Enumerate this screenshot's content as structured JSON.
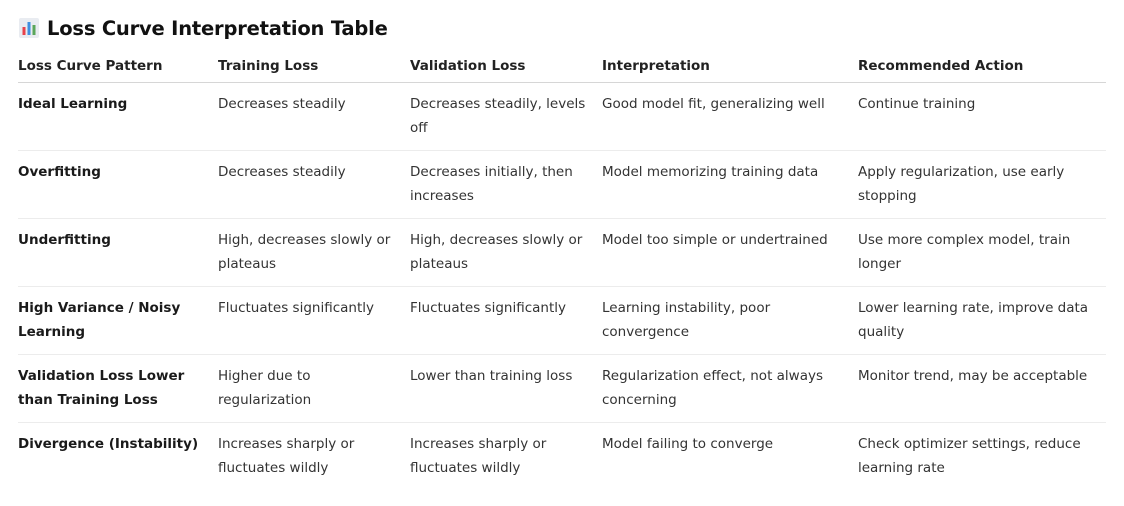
{
  "title": {
    "icon": "bar-chart-emoji-icon",
    "text": "Loss Curve Interpretation Table"
  },
  "table": {
    "headers": [
      "Loss Curve Pattern",
      "Training Loss",
      "Validation Loss",
      "Interpretation",
      "Recommended Action"
    ],
    "rows": [
      [
        "Ideal Learning",
        "Decreases steadily",
        "Decreases steadily, levels off",
        "Good model fit, generalizing well",
        "Continue training"
      ],
      [
        "Overfitting",
        "Decreases steadily",
        "Decreases initially, then increases",
        "Model memorizing training data",
        "Apply regularization, use early stopping"
      ],
      [
        "Underfitting",
        "High, decreases slowly or plateaus",
        "High, decreases slowly or plateaus",
        "Model too simple or undertrained",
        "Use more complex model, train longer"
      ],
      [
        "High Variance / Noisy Learning",
        "Fluctuates significantly",
        "Fluctuates significantly",
        "Learning instability, poor convergence",
        "Lower learning rate, improve data quality"
      ],
      [
        "Validation Loss Lower than Training Loss",
        "Higher due to regularization",
        "Lower than training loss",
        "Regularization effect, not always concerning",
        "Monitor trend, may be acceptable"
      ],
      [
        "Divergence (Instability)",
        "Increases sharply or fluctuates wildly",
        "Increases sharply or fluctuates wildly",
        "Model failing to converge",
        "Check optimizer settings, reduce learning rate"
      ]
    ]
  },
  "colors": {
    "icon_bars": [
      "#e8424b",
      "#3f8fe0",
      "#5aa65a"
    ],
    "icon_bg": "#e9ecf1"
  }
}
